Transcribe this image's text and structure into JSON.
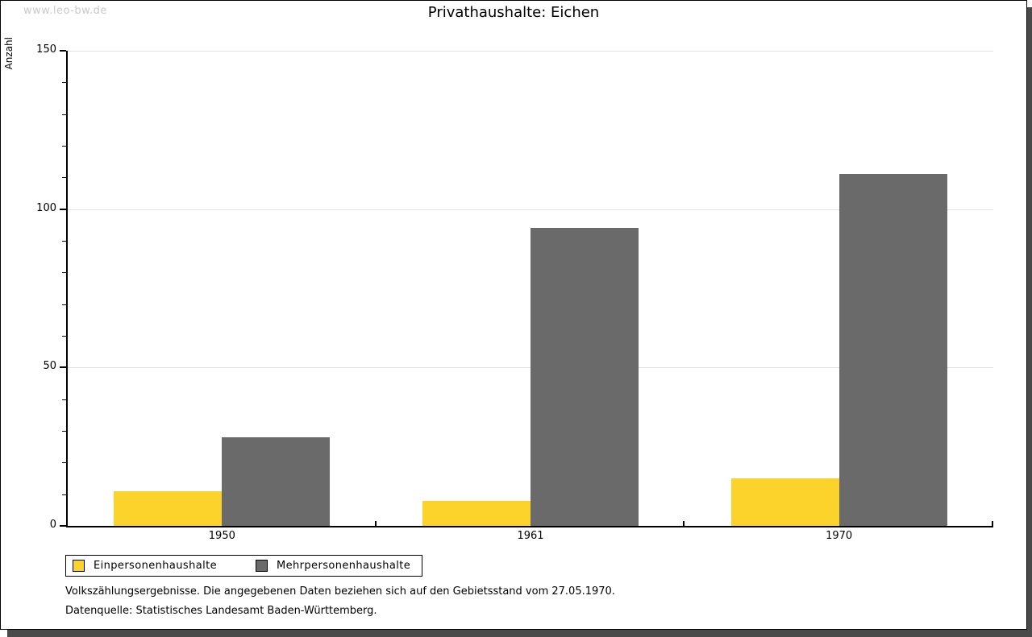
{
  "watermark": "www.leo-bw.de",
  "title": "Privathaushalte: Eichen",
  "chart_data": {
    "type": "bar",
    "title": "Privathaushalte: Eichen",
    "xlabel": "",
    "ylabel": "Anzahl",
    "categories": [
      "1950",
      "1961",
      "1970"
    ],
    "series": [
      {
        "name": "Einpersonenhaushalte",
        "color": "#FBD32B",
        "values": [
          11,
          8,
          15
        ]
      },
      {
        "name": "Mehrpersonenhaushalte",
        "color": "#6A6A6A",
        "values": [
          28,
          94,
          111
        ]
      }
    ],
    "ylim": [
      0,
      150
    ],
    "yticks": [
      0,
      50,
      100,
      150
    ],
    "minor_tick_step": 10,
    "grid": true,
    "legend_position": "bottom-left"
  },
  "footer": {
    "line1": "Volkszählungsergebnisse. Die angegebenen Daten beziehen sich auf den Gebietsstand vom 27.05.1970.",
    "line2": "Datenquelle: Statistisches Landesamt Baden-Württemberg."
  }
}
